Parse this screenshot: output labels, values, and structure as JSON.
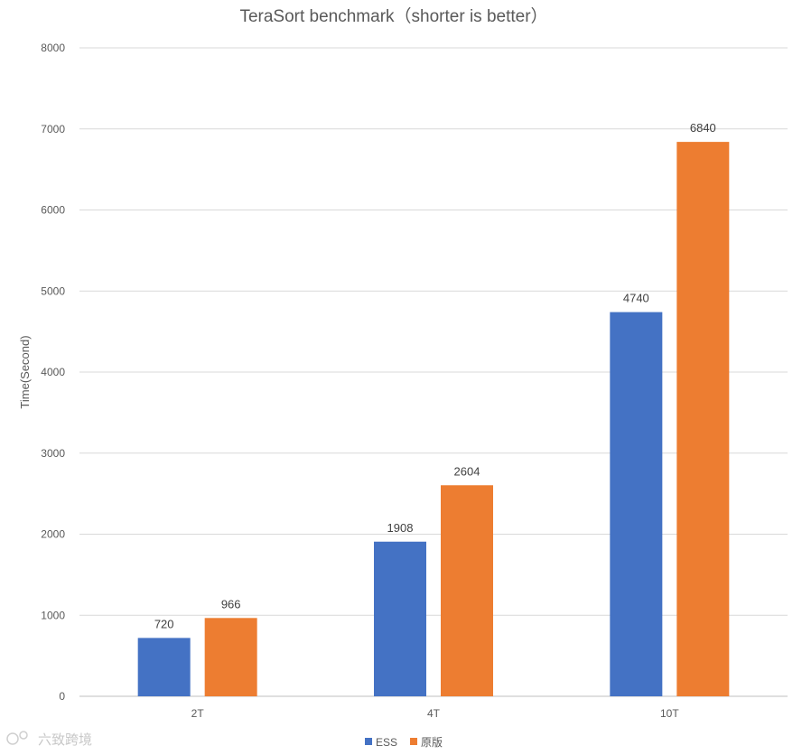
{
  "chart_data": {
    "type": "bar",
    "title": "TeraSort benchmark（shorter is better）",
    "xlabel": "",
    "ylabel": "Time(Second)",
    "categories": [
      "2T",
      "4T",
      "10T"
    ],
    "series": [
      {
        "name": "ESS",
        "color": "#4472c4",
        "values": [
          720,
          1908,
          4740
        ]
      },
      {
        "name": "原版",
        "color": "#ed7d31",
        "values": [
          966,
          2604,
          6840
        ]
      }
    ],
    "ylim": [
      0,
      8000
    ],
    "yticks": [
      0,
      1000,
      2000,
      3000,
      4000,
      5000,
      6000,
      7000,
      8000
    ],
    "grid": true,
    "legend_position": "bottom-center",
    "data_labels": true
  },
  "watermark": {
    "text": "六致跨境"
  }
}
